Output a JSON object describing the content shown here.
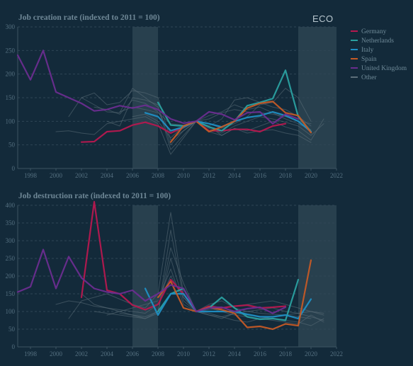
{
  "logo": "ECO",
  "colors": {
    "background": "#132a3a",
    "shade": "#2d4452",
    "grid": "#2f4655",
    "axis": "#3c5463",
    "Germany": "#b6184f",
    "Netherlands": "#2aa0a0",
    "Italy": "#1f8fc4",
    "Spain": "#c45a26",
    "United Kingdom": "#6a2d8f",
    "Other": "#5d6f7a"
  },
  "legend": [
    {
      "name": "Germany",
      "color": "#b6184f"
    },
    {
      "name": "Netherlands",
      "color": "#2aa0a0"
    },
    {
      "name": "Italy",
      "color": "#1f8fc4"
    },
    {
      "name": "Spain",
      "color": "#c45a26"
    },
    {
      "name": "United Kingdom",
      "color": "#6a2d8f"
    },
    {
      "name": "Other",
      "color": "#5d6f7a"
    }
  ],
  "chart_data": [
    {
      "type": "line",
      "title": "Job creation rate (indexed to 2011 = 100)",
      "xlim": [
        1997,
        2022
      ],
      "ylim": [
        0,
        300
      ],
      "x_ticks": [
        1998,
        2000,
        2002,
        2004,
        2006,
        2008,
        2010,
        2012,
        2014,
        2016,
        2018,
        2020,
        2022
      ],
      "y_ticks": [
        0,
        50,
        100,
        150,
        200,
        250,
        300
      ],
      "shaded_periods": [
        [
          2006,
          2008
        ],
        [
          2019,
          2022
        ]
      ],
      "series": [
        {
          "name": "Germany",
          "x": [
            2002,
            2003,
            2004,
            2005,
            2006,
            2007,
            2008,
            2009,
            2010,
            2011,
            2012,
            2013,
            2014,
            2015,
            2016,
            2017,
            2018
          ],
          "y": [
            56,
            57,
            78,
            80,
            92,
            98,
            90,
            75,
            88,
            100,
            80,
            80,
            83,
            83,
            78,
            90,
            95
          ]
        },
        {
          "name": "Netherlands",
          "x": [
            2008,
            2009,
            2010,
            2011,
            2012,
            2013,
            2014,
            2015,
            2016,
            2017,
            2018,
            2019,
            2020
          ],
          "y": [
            140,
            92,
            90,
            100,
            88,
            80,
            100,
            133,
            140,
            148,
            208,
            110,
            78
          ]
        },
        {
          "name": "Italy",
          "x": [
            2007,
            2008,
            2009,
            2010,
            2011,
            2012,
            2013,
            2014,
            2015,
            2016,
            2017,
            2018,
            2019,
            2020
          ],
          "y": [
            118,
            110,
            80,
            88,
            100,
            95,
            88,
            100,
            108,
            112,
            120,
            112,
            100,
            78
          ]
        },
        {
          "name": "Spain",
          "x": [
            2009,
            2010,
            2011,
            2012,
            2013,
            2014,
            2015,
            2016,
            2017,
            2018,
            2019,
            2020
          ],
          "y": [
            56,
            90,
            100,
            78,
            88,
            100,
            128,
            138,
            142,
            118,
            112,
            76
          ]
        },
        {
          "name": "United Kingdom",
          "x": [
            1997,
            1998,
            1999,
            2000,
            2001,
            2002,
            2003,
            2004,
            2005,
            2006,
            2007,
            2008,
            2009,
            2010,
            2011,
            2012,
            2013,
            2014,
            2015,
            2016,
            2017,
            2018,
            2019
          ],
          "y": [
            240,
            188,
            250,
            162,
            150,
            138,
            122,
            125,
            133,
            128,
            134,
            125,
            105,
            96,
            100,
            120,
            115,
            103,
            118,
            120,
            95,
            115,
            105
          ]
        },
        {
          "name": "Other",
          "x": [
            2001,
            2002,
            2003,
            2004,
            2005,
            2006,
            2007,
            2008,
            2009,
            2010,
            2011,
            2012,
            2013,
            2014,
            2015,
            2016,
            2017,
            2018,
            2019,
            2020
          ],
          "y": [
            110,
            150,
            160,
            135,
            140,
            165,
            160,
            150,
            60,
            80,
            100,
            90,
            105,
            145,
            150,
            140,
            130,
            125,
            110,
            90
          ]
        },
        {
          "name": "Other",
          "x": [
            2002,
            2003,
            2004,
            2005,
            2006,
            2007,
            2008,
            2009,
            2010,
            2011,
            2012,
            2013,
            2014,
            2015,
            2016,
            2017,
            2018,
            2019,
            2020
          ],
          "y": [
            150,
            135,
            120,
            118,
            170,
            150,
            130,
            40,
            70,
            100,
            95,
            85,
            95,
            110,
            135,
            140,
            170,
            150,
            100
          ]
        },
        {
          "name": "Other",
          "x": [
            2000,
            2001,
            2002,
            2003,
            2004,
            2005,
            2006,
            2007,
            2008,
            2009,
            2010,
            2011,
            2012,
            2013,
            2014,
            2015,
            2016,
            2017,
            2018,
            2019,
            2020,
            2021
          ],
          "y": [
            78,
            80,
            75,
            72,
            95,
            100,
            105,
            110,
            95,
            30,
            65,
            100,
            90,
            70,
            85,
            80,
            90,
            100,
            88,
            80,
            60,
            105
          ]
        },
        {
          "name": "Other",
          "x": [
            2003,
            2004,
            2005,
            2006,
            2007,
            2008,
            2009,
            2010,
            2011,
            2012,
            2013,
            2014,
            2015,
            2016,
            2017,
            2018,
            2019,
            2020
          ],
          "y": [
            130,
            125,
            115,
            145,
            138,
            120,
            75,
            85,
            100,
            105,
            118,
            125,
            120,
            118,
            115,
            110,
            100,
            95
          ]
        },
        {
          "name": "Other",
          "x": [
            2004,
            2005,
            2006,
            2007,
            2008,
            2009,
            2010,
            2011,
            2012,
            2013,
            2014,
            2015,
            2016,
            2017,
            2018,
            2019,
            2020,
            2021
          ],
          "y": [
            100,
            90,
            150,
            145,
            135,
            50,
            80,
            100,
            85,
            75,
            90,
            100,
            110,
            105,
            98,
            90,
            70,
            95
          ]
        },
        {
          "name": "Other",
          "x": [
            2005,
            2006,
            2007,
            2008,
            2009,
            2010,
            2011,
            2012,
            2013,
            2014,
            2015,
            2016,
            2017,
            2018,
            2019,
            2020
          ],
          "y": [
            120,
            130,
            125,
            118,
            95,
            92,
            100,
            112,
            120,
            135,
            125,
            130,
            118,
            105,
            95,
            82
          ]
        },
        {
          "name": "Other",
          "x": [
            2006,
            2007,
            2008,
            2009,
            2010,
            2011,
            2012,
            2013,
            2014,
            2015,
            2016,
            2017,
            2018,
            2019,
            2020
          ],
          "y": [
            110,
            115,
            100,
            65,
            90,
            100,
            78,
            70,
            85,
            75,
            80,
            82,
            75,
            70,
            55
          ]
        }
      ]
    },
    {
      "type": "line",
      "title": "Job destruction rate (indexed to 2011 = 100)",
      "xlim": [
        1997,
        2022
      ],
      "ylim": [
        0,
        400
      ],
      "x_ticks": [
        1998,
        2000,
        2002,
        2004,
        2006,
        2008,
        2010,
        2012,
        2014,
        2016,
        2018,
        2020,
        2022
      ],
      "y_ticks": [
        0,
        50,
        100,
        150,
        200,
        250,
        300,
        350,
        400
      ],
      "shaded_periods": [
        [
          2006,
          2008
        ],
        [
          2019,
          2022
        ]
      ],
      "series": [
        {
          "name": "Germany",
          "x": [
            2002,
            2003,
            2004,
            2005,
            2006,
            2007,
            2008,
            2009,
            2010,
            2011,
            2012,
            2013,
            2014,
            2015,
            2016,
            2017,
            2018
          ],
          "y": [
            140,
            410,
            160,
            150,
            118,
            105,
            120,
            190,
            150,
            100,
            115,
            110,
            115,
            118,
            110,
            112,
            115
          ]
        },
        {
          "name": "Netherlands",
          "x": [
            2008,
            2009,
            2010,
            2011,
            2012,
            2013,
            2014,
            2015,
            2016,
            2017,
            2018,
            2019
          ],
          "y": [
            100,
            150,
            165,
            100,
            110,
            140,
            110,
            85,
            78,
            80,
            75,
            190
          ]
        },
        {
          "name": "Italy",
          "x": [
            2007,
            2008,
            2009,
            2010,
            2011,
            2012,
            2013,
            2014,
            2015,
            2016,
            2017,
            2018,
            2019,
            2020
          ],
          "y": [
            165,
            90,
            150,
            150,
            100,
            100,
            100,
            100,
            92,
            85,
            85,
            90,
            80,
            135
          ]
        },
        {
          "name": "Spain",
          "x": [
            2008,
            2009,
            2010,
            2011,
            2012,
            2013,
            2014,
            2015,
            2016,
            2017,
            2018,
            2019,
            2020
          ],
          "y": [
            140,
            185,
            110,
            100,
            112,
            105,
            95,
            55,
            58,
            50,
            65,
            60,
            245
          ]
        },
        {
          "name": "United Kingdom",
          "x": [
            1997,
            1998,
            1999,
            2000,
            2001,
            2002,
            2003,
            2004,
            2005,
            2006,
            2007,
            2008,
            2009,
            2010,
            2011,
            2012,
            2013,
            2014,
            2015,
            2016,
            2017,
            2018
          ],
          "y": [
            155,
            170,
            275,
            165,
            255,
            195,
            165,
            155,
            150,
            160,
            130,
            150,
            175,
            165,
            100,
            110,
            112,
            100,
            108,
            112,
            95,
            112
          ]
        },
        {
          "name": "Other",
          "x": [
            2001,
            2002,
            2003,
            2004,
            2005,
            2006,
            2007,
            2008,
            2009,
            2010,
            2011,
            2012,
            2013,
            2014,
            2015,
            2016,
            2017,
            2018,
            2019,
            2020,
            2021
          ],
          "y": [
            80,
            130,
            140,
            150,
            135,
            120,
            110,
            150,
            380,
            150,
            100,
            95,
            85,
            75,
            70,
            80,
            75,
            70,
            65,
            90,
            70
          ]
        },
        {
          "name": "Other",
          "x": [
            2002,
            2003,
            2004,
            2005,
            2006,
            2007,
            2008,
            2009,
            2010,
            2011,
            2012,
            2013,
            2014,
            2015,
            2016,
            2017,
            2018,
            2019,
            2020,
            2021
          ],
          "y": [
            150,
            120,
            110,
            100,
            90,
            80,
            95,
            330,
            140,
            100,
            90,
            80,
            95,
            90,
            85,
            80,
            75,
            70,
            60,
            80
          ]
        },
        {
          "name": "Other",
          "x": [
            2003,
            2004,
            2005,
            2006,
            2007,
            2008,
            2009,
            2010,
            2011,
            2012,
            2013,
            2014,
            2015,
            2016,
            2017,
            2018,
            2019,
            2020,
            2021
          ],
          "y": [
            100,
            95,
            90,
            85,
            80,
            100,
            250,
            130,
            100,
            105,
            110,
            115,
            120,
            125,
            130,
            120,
            110,
            100,
            90
          ]
        },
        {
          "name": "Other",
          "x": [
            2004,
            2005,
            2006,
            2007,
            2008,
            2009,
            2010,
            2011,
            2012,
            2013,
            2014,
            2015,
            2016,
            2017,
            2018,
            2019,
            2020,
            2021
          ],
          "y": [
            90,
            100,
            110,
            120,
            130,
            220,
            120,
            100,
            90,
            85,
            95,
            100,
            105,
            110,
            100,
            95,
            85,
            75
          ]
        },
        {
          "name": "Other",
          "x": [
            2000,
            2001,
            2002,
            2003,
            2004,
            2005,
            2006,
            2007,
            2008,
            2009,
            2010,
            2011,
            2012,
            2013,
            2014,
            2015,
            2016,
            2017,
            2018,
            2019,
            2020
          ],
          "y": [
            120,
            130,
            125,
            115,
            110,
            105,
            100,
            95,
            120,
            200,
            140,
            100,
            120,
            130,
            110,
            100,
            95,
            92,
            90,
            85,
            80
          ]
        },
        {
          "name": "Other",
          "x": [
            2005,
            2006,
            2007,
            2008,
            2009,
            2010,
            2011,
            2012,
            2013,
            2014,
            2015,
            2016,
            2017,
            2018,
            2019,
            2020,
            2021
          ],
          "y": [
            95,
            90,
            85,
            100,
            280,
            180,
            100,
            110,
            100,
            90,
            85,
            80,
            85,
            90,
            95,
            100,
            95
          ]
        }
      ]
    }
  ]
}
